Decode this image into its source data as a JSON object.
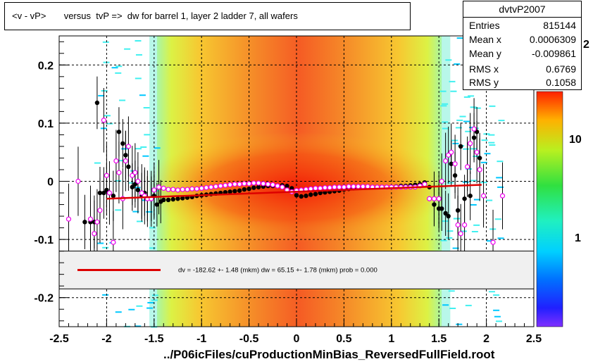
{
  "title": "<v - vP>       versus  tvP =>  dw for barrel 1, layer 2 ladder 7, all wafers",
  "stats": {
    "name": "dvtvP2007",
    "rows": [
      {
        "k": "Entries",
        "v": "815144"
      },
      {
        "k": "Mean x",
        "v": "0.0006309"
      },
      {
        "k": "Mean y",
        "v": "-0.009861"
      },
      {
        "k": "RMS x",
        "v": "0.6769"
      },
      {
        "k": "RMS y",
        "v": "0.1058"
      }
    ]
  },
  "xtitle": "../P06icFiles/cuProductionMinBias_ReversedFullField.root",
  "fit_text": "dv = -182.62 +-  1.48 (mkm) dw =   65.15 +-  1.78 (mkm) prob = 0.000",
  "palette_labels": [
    "10",
    "1"
  ],
  "palette_top_fragment": "2",
  "colors": {
    "fit": "#dd0000",
    "black_points": "#000000",
    "magenta_points": "#ee00ee"
  },
  "chart_data": {
    "type": "scatter",
    "xlim": [
      -2.5,
      2.5
    ],
    "ylim": [
      -0.25,
      0.25
    ],
    "xticks": [
      "-2.5",
      "-2",
      "-1.5",
      "-1",
      "-0.5",
      "0",
      "0.5",
      "1",
      "1.5",
      "2",
      "2.5"
    ],
    "yticks": [
      "0.2",
      "0.1",
      "0",
      "-0.1",
      "-0.2"
    ],
    "grid": true,
    "legend": "center",
    "series": [
      {
        "name": "black",
        "x": [
          -2.23,
          -2.17,
          -2.13,
          -2.1,
          -2.07,
          -2.03,
          -2.0,
          -1.93,
          -1.87,
          -1.83,
          -1.8,
          -1.77,
          -1.73,
          -1.7,
          -1.67,
          -1.63,
          -1.6,
          -1.57,
          -1.53,
          -1.5,
          -1.47,
          -1.43,
          -1.4,
          -1.35,
          -1.3,
          -1.25,
          -1.2,
          -1.15,
          -1.1,
          -1.05,
          -1.0,
          -0.95,
          -0.9,
          -0.85,
          -0.8,
          -0.75,
          -0.7,
          -0.65,
          -0.6,
          -0.55,
          -0.5,
          -0.45,
          -0.4,
          -0.35,
          -0.3,
          -0.25,
          -0.2,
          -0.15,
          -0.1,
          -0.05,
          0.0,
          0.05,
          0.1,
          0.15,
          0.2,
          0.25,
          0.3,
          0.35,
          0.4,
          0.45,
          0.5,
          0.55,
          0.6,
          0.65,
          0.7,
          0.75,
          0.8,
          0.85,
          0.9,
          0.95,
          1.0,
          1.05,
          1.1,
          1.15,
          1.2,
          1.25,
          1.3,
          1.35,
          1.4,
          1.45,
          1.5,
          1.53,
          1.57,
          1.6,
          1.63,
          1.67,
          1.7,
          1.73,
          1.77,
          1.8,
          1.83,
          1.87,
          1.9,
          1.93
        ],
        "y": [
          -0.07,
          -0.07,
          -0.07,
          0.135,
          -0.02,
          -0.02,
          -0.015,
          -0.025,
          0.085,
          0.065,
          0.045,
          0.025,
          -0.01,
          -0.005,
          -0.015,
          -0.025,
          -0.02,
          -0.03,
          -0.03,
          -0.025,
          -0.04,
          -0.035,
          -0.032,
          -0.032,
          -0.031,
          -0.03,
          -0.029,
          -0.028,
          -0.027,
          -0.025,
          -0.024,
          -0.023,
          -0.022,
          -0.021,
          -0.02,
          -0.019,
          -0.018,
          -0.017,
          -0.016,
          -0.014,
          -0.013,
          -0.011,
          -0.01,
          -0.009,
          -0.008,
          -0.008,
          -0.008,
          -0.007,
          -0.008,
          -0.012,
          -0.024,
          -0.026,
          -0.025,
          -0.023,
          -0.022,
          -0.02,
          -0.019,
          -0.018,
          -0.017,
          -0.016,
          -0.014,
          -0.013,
          -0.012,
          -0.011,
          -0.01,
          -0.01,
          -0.01,
          -0.01,
          -0.01,
          -0.01,
          -0.01,
          -0.009,
          -0.008,
          -0.008,
          -0.007,
          -0.006,
          -0.005,
          -0.002,
          -0.01,
          -0.04,
          -0.047,
          -0.047,
          -0.055,
          -0.06,
          0.03,
          0.01,
          -0.05,
          0.06,
          -0.03,
          0.025,
          -0.025,
          0.075,
          0.085,
          0.04
        ]
      },
      {
        "name": "magenta",
        "x": [
          -2.4,
          -2.3,
          -2.17,
          -2.13,
          -2.1,
          -2.07,
          -2.03,
          -2.0,
          -1.97,
          -1.93,
          -1.9,
          -1.87,
          -1.83,
          -1.8,
          -1.77,
          -1.73,
          -1.7,
          -1.67,
          -1.63,
          -1.6,
          -1.57,
          -1.53,
          -1.5,
          -1.45,
          -1.4,
          -1.35,
          -1.3,
          -1.25,
          -1.2,
          -1.15,
          -1.1,
          -1.05,
          -1.0,
          -0.95,
          -0.9,
          -0.85,
          -0.8,
          -0.75,
          -0.7,
          -0.65,
          -0.6,
          -0.55,
          -0.5,
          -0.45,
          -0.4,
          -0.35,
          -0.3,
          -0.25,
          -0.2,
          -0.15,
          -0.1,
          -0.05,
          0.0,
          0.05,
          0.1,
          0.15,
          0.2,
          0.25,
          0.3,
          0.35,
          0.4,
          0.45,
          0.5,
          0.55,
          0.6,
          0.65,
          0.7,
          0.75,
          0.8,
          0.85,
          0.9,
          0.95,
          1.0,
          1.05,
          1.1,
          1.15,
          1.2,
          1.25,
          1.3,
          1.35,
          1.4,
          1.45,
          1.5,
          1.53,
          1.57,
          1.6,
          1.63,
          1.67,
          1.7,
          1.73,
          1.77,
          1.8,
          1.83,
          1.87,
          1.9,
          1.93,
          1.97,
          2.07,
          2.17
        ],
        "y": [
          -0.065,
          0.0,
          -0.065,
          -0.09,
          -0.07,
          -0.05,
          0.105,
          0.01,
          -0.02,
          -0.105,
          0.035,
          0.015,
          -0.03,
          0.035,
          0.06,
          0.01,
          0.015,
          0.0,
          -0.02,
          -0.025,
          -0.03,
          -0.03,
          -0.015,
          -0.01,
          -0.012,
          -0.014,
          -0.014,
          -0.015,
          -0.014,
          -0.014,
          -0.013,
          -0.013,
          -0.012,
          -0.011,
          -0.01,
          -0.009,
          -0.008,
          -0.007,
          -0.006,
          -0.005,
          -0.005,
          -0.004,
          -0.004,
          -0.003,
          -0.003,
          -0.004,
          -0.005,
          -0.006,
          -0.008,
          -0.01,
          -0.015,
          -0.018,
          -0.016,
          -0.015,
          -0.014,
          -0.013,
          -0.012,
          -0.012,
          -0.011,
          -0.011,
          -0.01,
          -0.01,
          -0.01,
          -0.009,
          -0.009,
          -0.009,
          -0.009,
          -0.009,
          -0.01,
          -0.01,
          -0.01,
          -0.01,
          -0.01,
          -0.01,
          -0.01,
          -0.01,
          -0.01,
          -0.01,
          -0.008,
          -0.005,
          -0.03,
          -0.03,
          -0.03,
          0.0,
          0.035,
          0.045,
          0.05,
          0.03,
          -0.075,
          -0.09,
          -0.075,
          0.025,
          0.065,
          0.09,
          0.05,
          0.02,
          -0.025,
          -0.105,
          -0.025
        ]
      },
      {
        "name": "fit",
        "x": [
          -2.0,
          1.95
        ],
        "y": [
          -0.03,
          -0.006
        ]
      }
    ]
  }
}
